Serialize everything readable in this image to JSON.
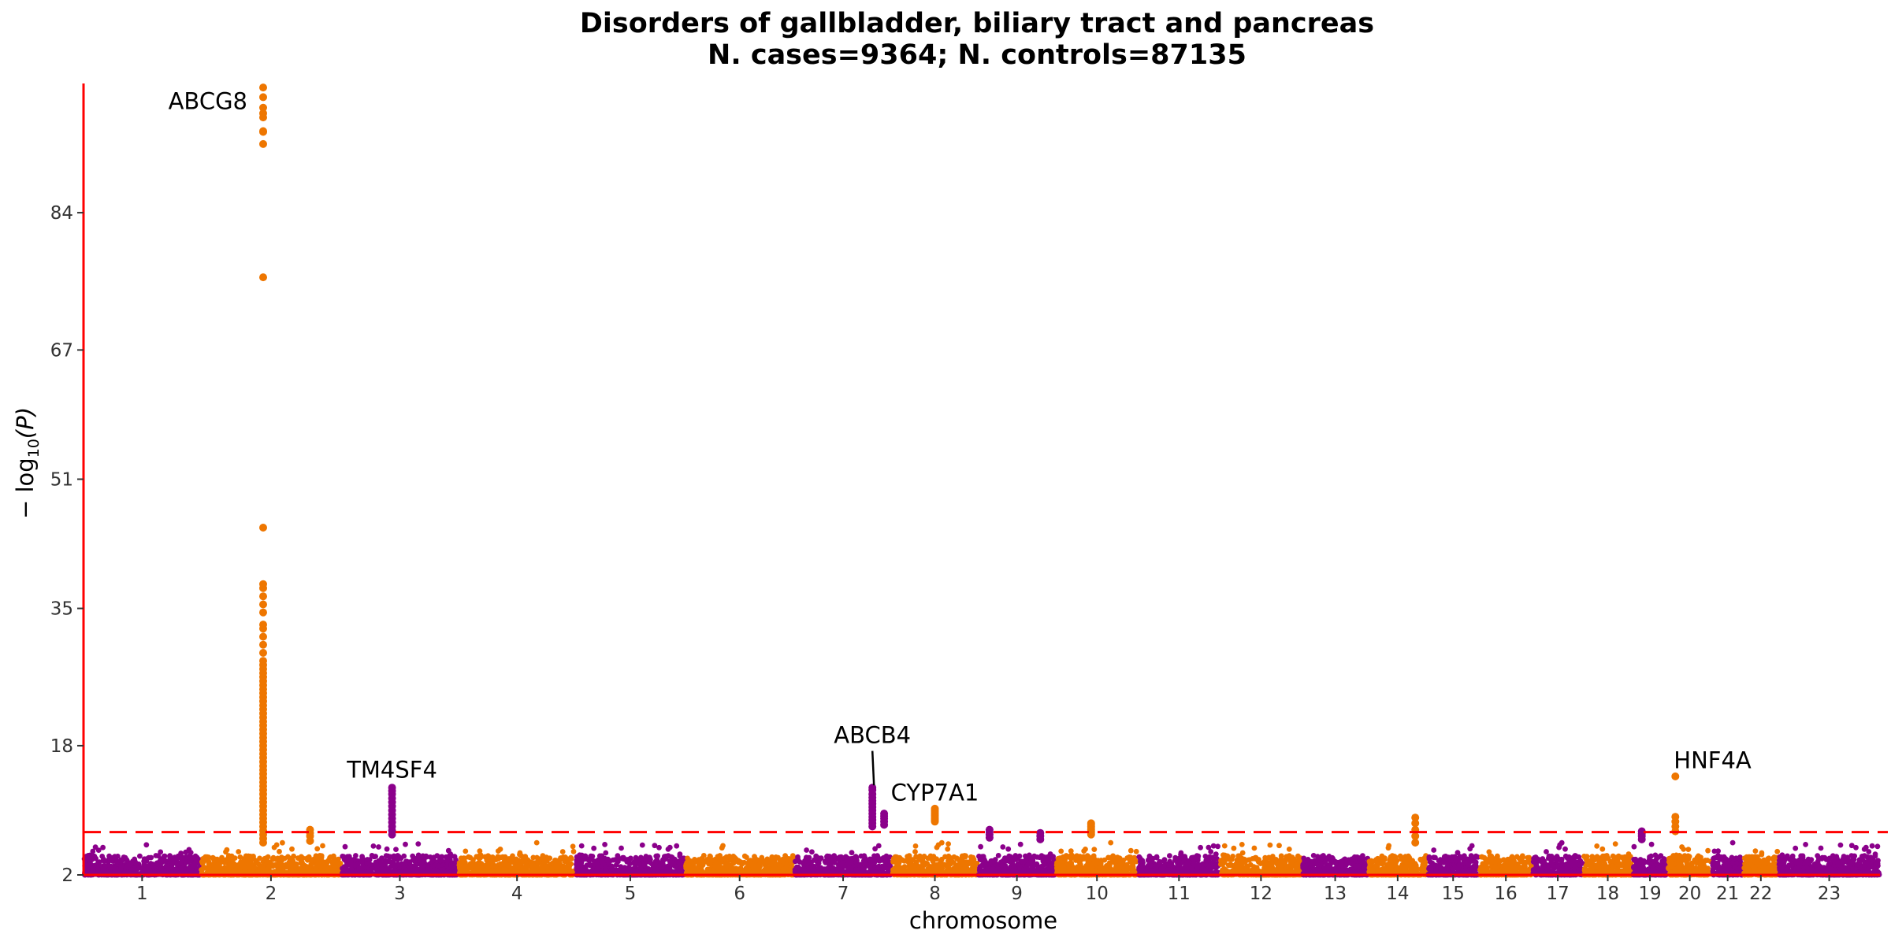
{
  "chart_data": {
    "type": "scatter",
    "title": "Disorders of gallbladder, biliary tract and pancreas",
    "subtitle": "N. cases=9364; N. controls=87135",
    "xlabel": "chromosome",
    "ylabel_prefix": "− log",
    "ylabel_sub": "10",
    "ylabel_suffix": "(P)",
    "yticks": [
      2,
      18,
      35,
      51,
      67,
      84
    ],
    "ylim": [
      2,
      100
    ],
    "significance_threshold": 7.3,
    "grid": false,
    "colors": {
      "odd_chromosome": "#8B008B",
      "even_chromosome": "#EE7600",
      "axis": "#FF0000",
      "threshold": "#FF0000"
    },
    "chromosomes": [
      {
        "label": "1",
        "start": 0,
        "end": 1.5
      },
      {
        "label": "2",
        "start": 1.5,
        "end": 3.3
      },
      {
        "label": "3",
        "start": 3.3,
        "end": 4.8
      },
      {
        "label": "4",
        "start": 4.8,
        "end": 6.3
      },
      {
        "label": "5",
        "start": 6.3,
        "end": 7.7
      },
      {
        "label": "6",
        "start": 7.7,
        "end": 9.1
      },
      {
        "label": "7",
        "start": 9.1,
        "end": 10.35
      },
      {
        "label": "8",
        "start": 10.35,
        "end": 11.45
      },
      {
        "label": "9",
        "start": 11.45,
        "end": 12.45
      },
      {
        "label": "10",
        "start": 12.45,
        "end": 13.5
      },
      {
        "label": "11",
        "start": 13.5,
        "end": 14.55
      },
      {
        "label": "12",
        "start": 14.55,
        "end": 15.6
      },
      {
        "label": "13",
        "start": 15.6,
        "end": 16.45
      },
      {
        "label": "14",
        "start": 16.45,
        "end": 17.2
      },
      {
        "label": "15",
        "start": 17.2,
        "end": 17.87
      },
      {
        "label": "16",
        "start": 17.87,
        "end": 18.55
      },
      {
        "label": "17",
        "start": 18.55,
        "end": 19.2
      },
      {
        "label": "18",
        "start": 19.2,
        "end": 19.83
      },
      {
        "label": "19",
        "start": 19.83,
        "end": 20.28
      },
      {
        "label": "20",
        "start": 20.28,
        "end": 20.85
      },
      {
        "label": "21",
        "start": 20.85,
        "end": 21.25
      },
      {
        "label": "22",
        "start": 21.25,
        "end": 21.7
      },
      {
        "label": "23",
        "start": 21.7,
        "end": 23.0
      }
    ],
    "peaks": [
      {
        "x": 2.3,
        "values": [
          99.5,
          98.3,
          97.0,
          96.3,
          95.8,
          94.1,
          94.0,
          92.5,
          76.0,
          45.0,
          38.0,
          37.5,
          36.5,
          35.5,
          34.5,
          33.0,
          32.5,
          31.5,
          30.5,
          29.5,
          28.5,
          28.0,
          27.5,
          27.0,
          26.5,
          26.0,
          25.5,
          25.0,
          24.5,
          24.0,
          23.5,
          23.0,
          22.5,
          22.0,
          21.5,
          21.0,
          20.5,
          20.0,
          19.5,
          19.0,
          18.5,
          18.0,
          17.5,
          17.0,
          16.5,
          16.0,
          15.5,
          15.0,
          14.5,
          14.0,
          13.5,
          13.0,
          12.5,
          12.0,
          11.5,
          11.0,
          10.5,
          10.0,
          9.5,
          9.0,
          8.5,
          8.0,
          7.5,
          7.0,
          6.5,
          6.0
        ]
      },
      {
        "x": 3.95,
        "values": [
          12.8,
          12.4,
          12.0,
          11.5,
          11.0,
          10.5,
          10.0,
          9.5,
          9.0,
          8.5,
          8.0,
          7.5,
          7.0
        ]
      },
      {
        "x": 10.1,
        "values": [
          12.8,
          12.5,
          12.0,
          11.6,
          11.2,
          10.8,
          10.4,
          10.0,
          9.6,
          9.2,
          8.8,
          8.4,
          8.0
        ]
      },
      {
        "x": 10.25,
        "values": [
          9.6,
          9.3,
          9.0,
          8.6,
          8.2
        ]
      },
      {
        "x": 10.9,
        "values": [
          10.2,
          10.0,
          9.8,
          9.6,
          9.4,
          9.2,
          9.0,
          8.8,
          8.6
        ]
      },
      {
        "x": 17.05,
        "values": [
          9.1,
          8.4,
          7.6,
          6.8,
          6.0
        ]
      },
      {
        "x": 20.38,
        "values": [
          14.2,
          9.2,
          8.6,
          8.0,
          7.4
        ]
      },
      {
        "x": 12.9,
        "values": [
          8.4,
          8.2,
          8.0,
          7.8,
          7.6,
          7.4,
          7.2,
          7.0
        ]
      },
      {
        "x": 2.9,
        "values": [
          7.6,
          7.2,
          6.8,
          6.2
        ]
      },
      {
        "x": 11.6,
        "values": [
          7.6,
          7.3,
          7.0,
          6.6
        ]
      },
      {
        "x": 12.25,
        "values": [
          7.2,
          6.8,
          6.4
        ]
      },
      {
        "x": 19.95,
        "values": [
          7.4,
          7.1,
          6.8,
          6.4
        ]
      }
    ],
    "annotations": [
      {
        "label": "ABCG8",
        "x": 2.3,
        "y": 97.8,
        "anchor": "end"
      },
      {
        "label": "TM4SF4",
        "x": 3.95,
        "y": 15.0,
        "anchor": "middle"
      },
      {
        "label": "ABCB4",
        "x": 10.1,
        "y": 19.3,
        "anchor": "middle"
      },
      {
        "label": "CYP7A1",
        "x": 10.9,
        "y": 12.2,
        "anchor": "middle"
      },
      {
        "label": "HNF4A",
        "x": 20.38,
        "y": 16.2,
        "anchor": "start"
      }
    ]
  }
}
